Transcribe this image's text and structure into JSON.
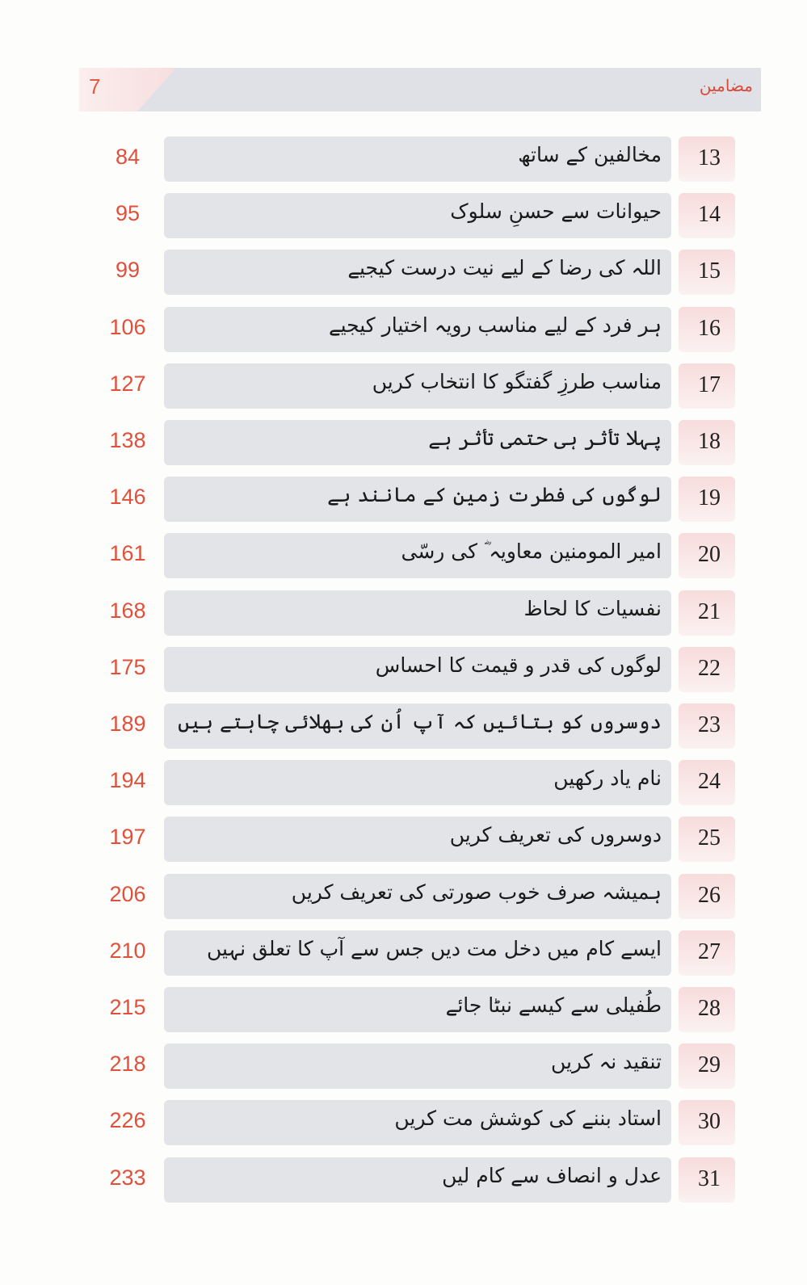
{
  "header": {
    "page_number": "7",
    "title": "مضامین"
  },
  "colors": {
    "accent": "#e0503a",
    "bar": "#e2e4e8",
    "number_box": "#f8dcdc"
  },
  "entries": [
    {
      "num": "13",
      "title": "مخالفین کے ساتھ",
      "page": "84"
    },
    {
      "num": "14",
      "title": "حیوانات سے حسنِ سلوک",
      "page": "95"
    },
    {
      "num": "15",
      "title": "اللہ کی رضا کے لیے نیت درست کیجیے",
      "page": "99"
    },
    {
      "num": "16",
      "title": "ہر فرد کے لیے مناسب رویہ اختیار کیجیے",
      "page": "106"
    },
    {
      "num": "17",
      "title": "مناسب طرزِ گفتگو کا انتخاب کریں",
      "page": "127"
    },
    {
      "num": "18",
      "title": "پہلا تأثر ہی حتمی تأثر ہے",
      "page": "138"
    },
    {
      "num": "19",
      "title": "لوگوں کی فطرت زمین کے مانند ہے",
      "page": "146"
    },
    {
      "num": "20",
      "title": "امیر المومنین معاویہ ؓ کی رسّی",
      "page": "161"
    },
    {
      "num": "21",
      "title": "نفسیات کا لحاظ",
      "page": "168"
    },
    {
      "num": "22",
      "title": "لوگوں کی قدر و قیمت کا احساس",
      "page": "175"
    },
    {
      "num": "23",
      "title": "دوسروں کو بتائیں کہ آپ اُن کی بھلائی چاہتے ہیں",
      "page": "189"
    },
    {
      "num": "24",
      "title": "نام یاد رکھیں",
      "page": "194"
    },
    {
      "num": "25",
      "title": "دوسروں کی تعریف کریں",
      "page": "197"
    },
    {
      "num": "26",
      "title": "ہمیشہ صرف خوب صورتی کی تعریف کریں",
      "page": "206"
    },
    {
      "num": "27",
      "title": "ایسے کام میں دخل مت دیں جس سے آپ کا تعلق نہیں",
      "page": "210"
    },
    {
      "num": "28",
      "title": "طُفیلی سے کیسے نبٹا جائے",
      "page": "215"
    },
    {
      "num": "29",
      "title": "تنقید نہ کریں",
      "page": "218"
    },
    {
      "num": "30",
      "title": "استاد بننے کی کوشش مت کریں",
      "page": "226"
    },
    {
      "num": "31",
      "title": "عدل و انصاف سے کام لیں",
      "page": "233"
    }
  ]
}
